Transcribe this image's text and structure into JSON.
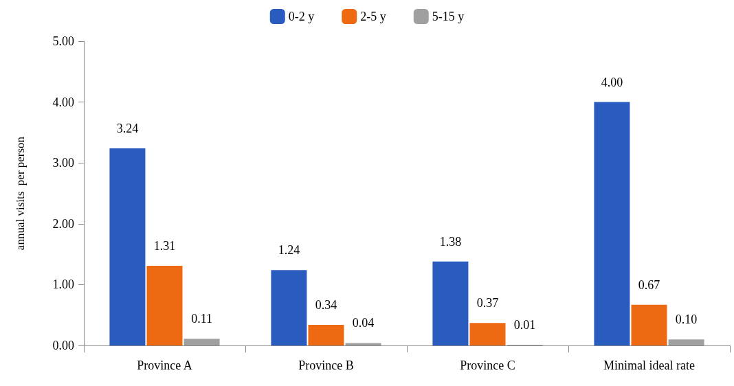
{
  "chart_data": {
    "type": "bar",
    "ylabel": "annual visits  per person",
    "categories": [
      "Province A",
      "Province B",
      "Province C",
      "Minimal ideal rate"
    ],
    "series": [
      {
        "name": "0-2 y",
        "color": "#2a5cbf",
        "values": [
          3.24,
          1.24,
          1.38,
          4.0
        ],
        "value_labels": [
          "3.24",
          "1.24",
          "1.38",
          "4.00"
        ]
      },
      {
        "name": "2-5 y",
        "color": "#ee6a12",
        "values": [
          1.31,
          0.34,
          0.37,
          0.67
        ],
        "value_labels": [
          "1.31",
          "0.34",
          "0.37",
          "0.67"
        ]
      },
      {
        "name": "5-15 y",
        "color": "#a0a0a0",
        "values": [
          0.11,
          0.04,
          0.01,
          0.1
        ],
        "value_labels": [
          "0.11",
          "0.04",
          "0.01",
          "0.10"
        ]
      }
    ],
    "ylim": [
      0,
      5
    ],
    "yticks": [
      {
        "value": 0,
        "label": "0.00"
      },
      {
        "value": 1,
        "label": "1.00"
      },
      {
        "value": 2,
        "label": "2.00"
      },
      {
        "value": 3,
        "label": "3.00"
      },
      {
        "value": 4,
        "label": "4.00"
      },
      {
        "value": 5,
        "label": "5.00"
      }
    ],
    "grid": false,
    "legend": "top"
  }
}
